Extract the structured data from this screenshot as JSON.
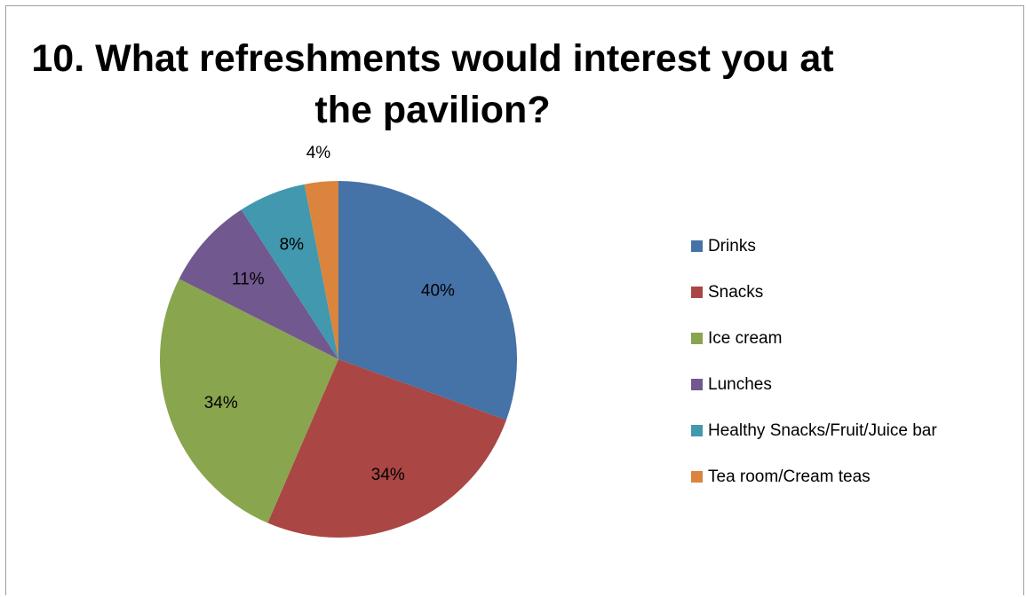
{
  "chart_data": {
    "type": "pie",
    "title_lines": [
      "10. What refreshments would interest you at",
      "the pavilion?"
    ],
    "categories": [
      "Drinks",
      "Snacks",
      "Ice cream",
      "Lunches",
      "Healthy Snacks/Fruit/Juice bar",
      "Tea room/Cream teas"
    ],
    "values": [
      40,
      34,
      34,
      11,
      8,
      4
    ],
    "data_labels": [
      "40%",
      "34%",
      "34%",
      "11%",
      "8%",
      "4%"
    ],
    "colors": [
      "#4572A7",
      "#AA4643",
      "#89A54E",
      "#71588F",
      "#4198AF",
      "#DB843D"
    ],
    "legend_position": "right",
    "start_angle_deg": 0,
    "direction": "clockwise"
  }
}
